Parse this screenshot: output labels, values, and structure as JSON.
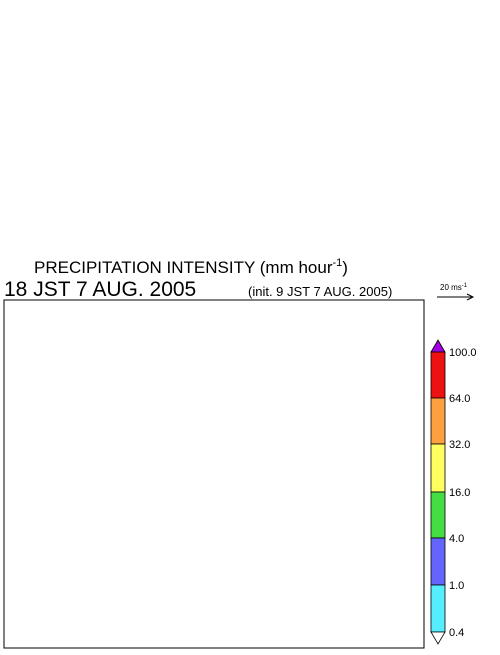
{
  "title": {
    "main": "PRECIPITATION INTENSITY (mm hour",
    "exponent": "-1",
    "close": ")"
  },
  "valid_time": "18 JST 7 AUG. 2005",
  "init_time": "(init. 9 JST 7 AUG. 2005)",
  "vector_reference": {
    "label": "20 ms",
    "exponent": "-1"
  },
  "colorbar": {
    "labels": [
      "100.0",
      "64.0",
      "32.0",
      "16.0",
      "4.0",
      "1.0",
      "0.4"
    ]
  }
}
